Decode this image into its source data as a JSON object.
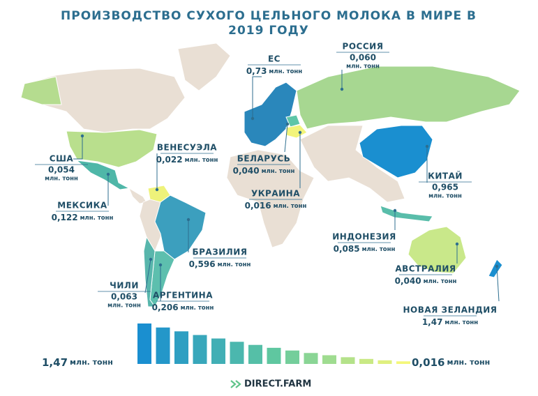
{
  "title": [
    "ПРОИЗВОДСТВО СУХОГО ЦЕЛЬНОГО МОЛОКА В МИРЕ В",
    "2019 ГОДУ"
  ],
  "countries": [
    {
      "name": "ЕС",
      "value": "0,73",
      "unit": "млн. тонн"
    },
    {
      "name": "РОССИЯ",
      "value": "0,060",
      "unit": "млн. тонн"
    },
    {
      "name": "США",
      "value": "0,054",
      "unit": "млн. тонн"
    },
    {
      "name": "ВЕНЕСУЭЛА",
      "value": "0,022",
      "unit": "млн. тонн"
    },
    {
      "name": "БЕЛАРУСЬ",
      "value": "0,040",
      "unit": "млн. тонн"
    },
    {
      "name": "УКРАИНА",
      "value": "0,016",
      "unit": "млн. тонн"
    },
    {
      "name": "КИТАЙ",
      "value": "0,965",
      "unit": "млн. тонн"
    },
    {
      "name": "МЕКСИКА",
      "value": "0,122",
      "unit": "млн. тонн"
    },
    {
      "name": "ИНДОНЕЗИЯ",
      "value": "0,085",
      "unit": "млн. тонн"
    },
    {
      "name": "БРАЗИЛИЯ",
      "value": "0,596",
      "unit": "млн. тонн"
    },
    {
      "name": "АВСТРАЛИЯ",
      "value": "0,040",
      "unit": "млн. тонн"
    },
    {
      "name": "ЧИЛИ",
      "value": "0,063",
      "unit": "млн. тонн"
    },
    {
      "name": "АРГЕНТИНА",
      "value": "0,206",
      "unit": "млн. тонн"
    },
    {
      "name": "НОВАЯ ЗЕЛАНДИЯ",
      "value": "1,47",
      "unit": "млн. тонн"
    }
  ],
  "legend": {
    "max": {
      "value": "1,47",
      "unit": "млн. тонн"
    },
    "min": {
      "value": "0,016",
      "unit": "млн. тонн"
    }
  },
  "brand": "DIRECT.FARM"
}
